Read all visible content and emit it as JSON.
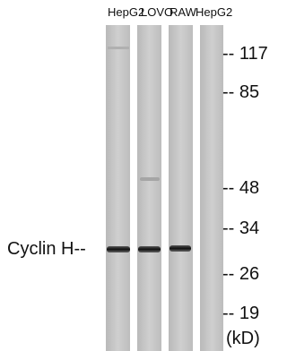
{
  "lanes": [
    "HepG2",
    "LOVO",
    "RAW",
    "HepG2"
  ],
  "markers": [
    "-- 117",
    "-- 85",
    "-- 48",
    "-- 34",
    "-- 26",
    "-- 19"
  ],
  "unit": "(kD)",
  "protein_label": "Cyclin H--"
}
